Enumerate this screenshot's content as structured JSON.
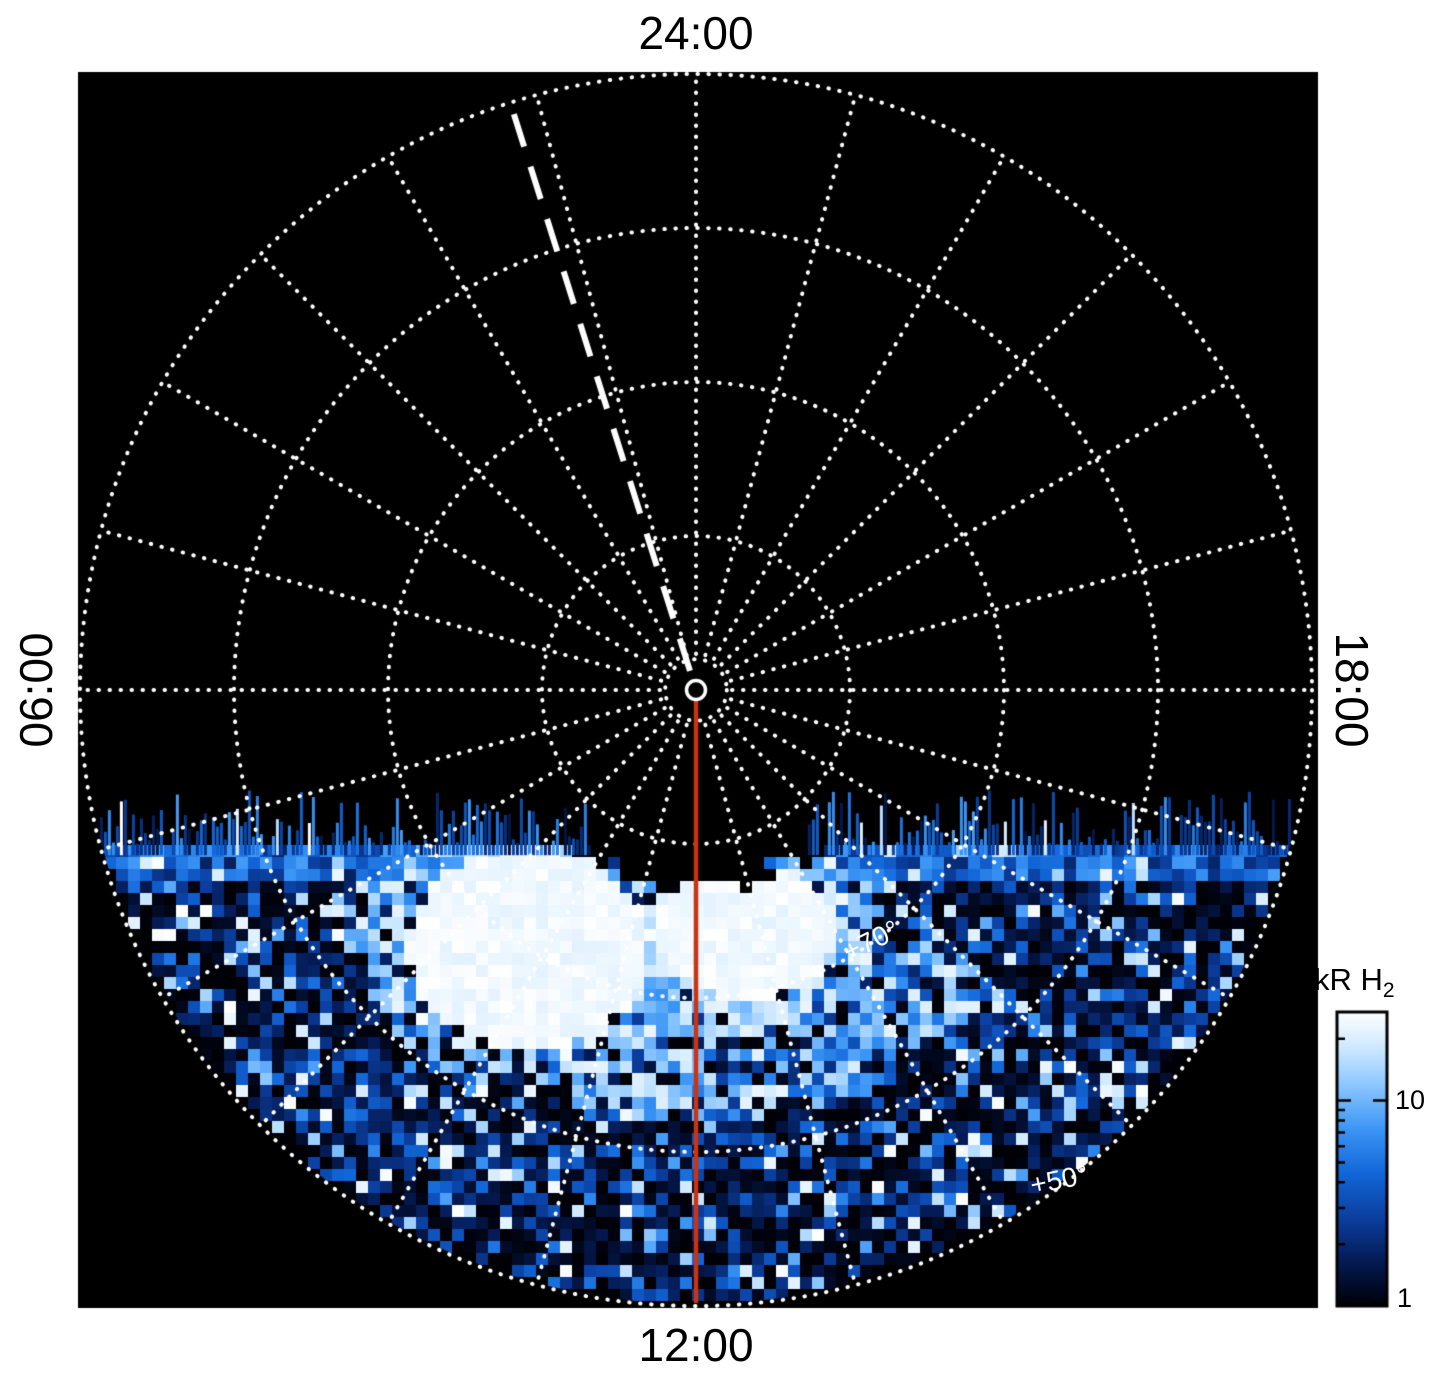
{
  "chart_data": {
    "type": "heatmap",
    "subtype": "polar-projection-auroral-emission-map",
    "title": "",
    "axes": {
      "angular": "local time, 24:00 at top, 12:00 at bottom, 06:00 at left, 18:00 at right",
      "radial": "latitude, pole (+90°) at center decreasing to +50° at the outer dotted circle, dotted rings every 10°"
    },
    "hour_labels": {
      "top": "24:00",
      "bottom": "12:00",
      "left": "06:00",
      "right": "18:00"
    },
    "latitude_rings_deg": [
      80,
      70,
      60,
      50
    ],
    "pole_latitude_deg": 90,
    "outer_latitude_deg": 50,
    "spoke_step_hours": 1,
    "ring_annotations": [
      {
        "label": "+70°",
        "latitude_deg": 70,
        "local_time_h": 14.2
      },
      {
        "label": "+50°",
        "latitude_deg": 50.7,
        "local_time_h": 14.4
      }
    ],
    "grid_color": "#ffffff",
    "background_color": "#000000",
    "page_background": "#ffffff",
    "colorbar": {
      "label_main": "kR H",
      "label_sub": "2",
      "scale": "log",
      "min": 1,
      "max": 27,
      "tick_labels": [
        "10",
        "1"
      ],
      "tick_values": [
        10,
        1
      ],
      "minor_tick_values": [
        2,
        3,
        4,
        5,
        6,
        7,
        8,
        9,
        20
      ],
      "colormap": [
        [
          0.0,
          "#000006"
        ],
        [
          0.15,
          "#041a52"
        ],
        [
          0.3,
          "#0b3fa0"
        ],
        [
          0.45,
          "#1266d8"
        ],
        [
          0.6,
          "#3b95f5"
        ],
        [
          0.75,
          "#8cc6ff"
        ],
        [
          0.88,
          "#cfe9ff"
        ],
        [
          1.0,
          "#ffffff"
        ]
      ]
    },
    "features": {
      "noon_meridian_line": {
        "color": "#cc3311",
        "style": "solid",
        "from": "pole",
        "to": "12:00 outer edge"
      },
      "dashed_meridian_line": {
        "color": "#ffffff",
        "style": "long-dash",
        "local_time_h": 1.17,
        "from": "pole",
        "to": "outer edge"
      },
      "center_marker": {
        "shape": "small white circle at pole",
        "color": "#ffffff"
      },
      "terminator_offset_frac": 0.252,
      "polar_dark_cap_radius_frac": 0.3,
      "inner_marker_ring_frac": 0.05,
      "emission": {
        "description": "patchy H2 auroral/dayglow emission covering the dayside (roughly 06:00 through 12:00 to 18:00) equatorward of a horizontal terminator; mosaic of ~1-10 kR cells with ragged streaks at the terminator and saturated white patches near noon around +65° to +75° latitude; nightside is dark",
        "bright_patches": [
          {
            "local_time_h": 9.8,
            "latitude_deg": 70,
            "dlt_h": 1.5,
            "dlat_deg": 6.5
          },
          {
            "local_time_h": 12.8,
            "latitude_deg": 74,
            "dlt_h": 1.4,
            "dlat_deg": 4.5
          }
        ],
        "diffuse_arc": {
          "local_time_range_h": [
            8,
            15
          ],
          "latitude_range_deg": [
            62,
            74
          ]
        },
        "noise_seed": 1234567
      }
    }
  }
}
